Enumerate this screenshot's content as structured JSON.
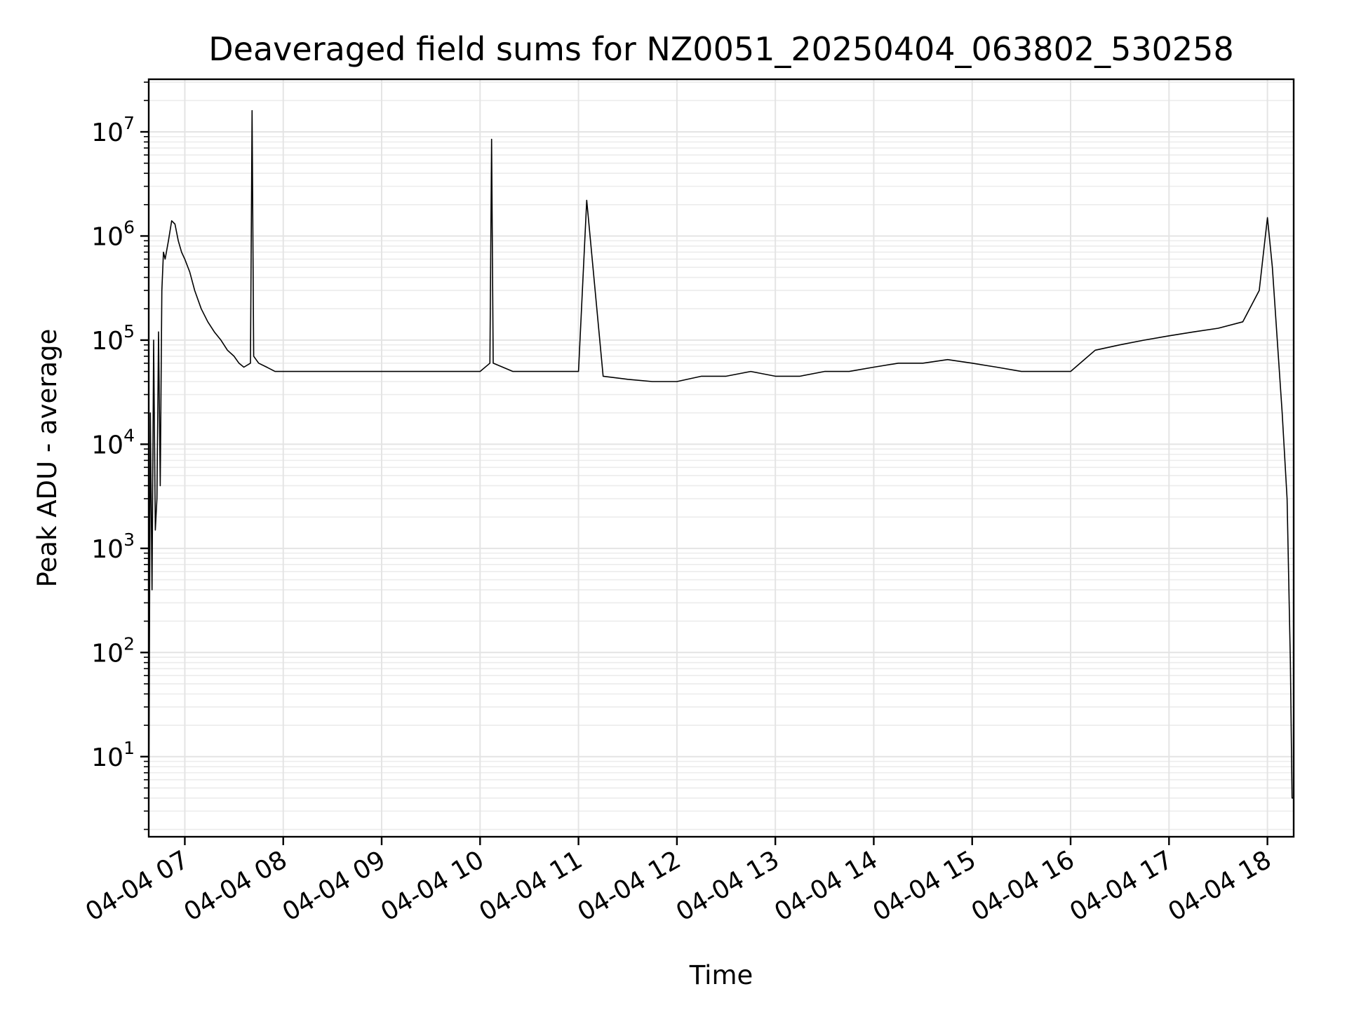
{
  "chart_data": {
    "type": "line",
    "title": "Deaveraged field sums for NZ0051_20250404_063802_530258",
    "xlabel": "Time",
    "ylabel": "Peak ADU - average",
    "yscale": "log",
    "ylim": [
      1.7,
      32000000.0
    ],
    "xlim": [
      "2025-04-04T06:38",
      "2025-04-04T18:16"
    ],
    "grid": true,
    "grid_minor": true,
    "x_ticks": [
      {
        "label": "04-04 07",
        "value": "2025-04-04T07:00"
      },
      {
        "label": "04-04 08",
        "value": "2025-04-04T08:00"
      },
      {
        "label": "04-04 09",
        "value": "2025-04-04T09:00"
      },
      {
        "label": "04-04 10",
        "value": "2025-04-04T10:00"
      },
      {
        "label": "04-04 11",
        "value": "2025-04-04T11:00"
      },
      {
        "label": "04-04 12",
        "value": "2025-04-04T12:00"
      },
      {
        "label": "04-04 13",
        "value": "2025-04-04T13:00"
      },
      {
        "label": "04-04 14",
        "value": "2025-04-04T14:00"
      },
      {
        "label": "04-04 15",
        "value": "2025-04-04T15:00"
      },
      {
        "label": "04-04 16",
        "value": "2025-04-04T16:00"
      },
      {
        "label": "04-04 17",
        "value": "2025-04-04T17:00"
      },
      {
        "label": "04-04 18",
        "value": "2025-04-04T18:00"
      }
    ],
    "y_ticks": [
      {
        "base": "10",
        "exp": "1",
        "value": 10
      },
      {
        "base": "10",
        "exp": "2",
        "value": 100
      },
      {
        "base": "10",
        "exp": "3",
        "value": 1000
      },
      {
        "base": "10",
        "exp": "4",
        "value": 10000
      },
      {
        "base": "10",
        "exp": "5",
        "value": 100000
      },
      {
        "base": "10",
        "exp": "6",
        "value": 1000000
      },
      {
        "base": "10",
        "exp": "7",
        "value": 10000000
      }
    ],
    "series": [
      {
        "color": "#000000",
        "x": [
          "2025-04-04T06:38",
          "2025-04-04T06:39",
          "2025-04-04T06:40",
          "2025-04-04T06:41",
          "2025-04-04T06:42",
          "2025-04-04T06:43",
          "2025-04-04T06:44",
          "2025-04-04T06:45",
          "2025-04-04T06:46",
          "2025-04-04T06:47",
          "2025-04-04T06:48",
          "2025-04-04T06:50",
          "2025-04-04T06:52",
          "2025-04-04T06:54",
          "2025-04-04T06:56",
          "2025-04-04T06:58",
          "2025-04-04T07:00",
          "2025-04-04T07:03",
          "2025-04-04T07:06",
          "2025-04-04T07:10",
          "2025-04-04T07:14",
          "2025-04-04T07:18",
          "2025-04-04T07:22",
          "2025-04-04T07:26",
          "2025-04-04T07:30",
          "2025-04-04T07:33",
          "2025-04-04T07:36",
          "2025-04-04T07:40",
          "2025-04-04T07:41",
          "2025-04-04T07:42",
          "2025-04-04T07:45",
          "2025-04-04T07:50",
          "2025-04-04T07:55",
          "2025-04-04T08:00",
          "2025-04-04T08:10",
          "2025-04-04T08:20",
          "2025-04-04T08:30",
          "2025-04-04T08:40",
          "2025-04-04T08:50",
          "2025-04-04T09:00",
          "2025-04-04T09:10",
          "2025-04-04T09:20",
          "2025-04-04T09:30",
          "2025-04-04T09:40",
          "2025-04-04T09:50",
          "2025-04-04T10:00",
          "2025-04-04T10:06",
          "2025-04-04T10:07",
          "2025-04-04T10:08",
          "2025-04-04T10:20",
          "2025-04-04T10:30",
          "2025-04-04T10:40",
          "2025-04-04T10:50",
          "2025-04-04T11:00",
          "2025-04-04T11:05",
          "2025-04-04T11:15",
          "2025-04-04T11:30",
          "2025-04-04T11:45",
          "2025-04-04T12:00",
          "2025-04-04T12:15",
          "2025-04-04T12:30",
          "2025-04-04T12:45",
          "2025-04-04T13:00",
          "2025-04-04T13:15",
          "2025-04-04T13:30",
          "2025-04-04T13:45",
          "2025-04-04T14:00",
          "2025-04-04T14:15",
          "2025-04-04T14:30",
          "2025-04-04T14:45",
          "2025-04-04T15:00",
          "2025-04-04T15:15",
          "2025-04-04T15:30",
          "2025-04-04T15:45",
          "2025-04-04T16:00",
          "2025-04-04T16:15",
          "2025-04-04T16:30",
          "2025-04-04T16:45",
          "2025-04-04T17:00",
          "2025-04-04T17:15",
          "2025-04-04T17:30",
          "2025-04-04T17:45",
          "2025-04-04T17:55",
          "2025-04-04T18:00",
          "2025-04-04T18:03",
          "2025-04-04T18:06",
          "2025-04-04T18:09",
          "2025-04-04T18:12",
          "2025-04-04T18:14",
          "2025-04-04T18:15",
          "2025-04-04T18:16"
        ],
        "y": [
          2,
          20000,
          400,
          100000,
          1500,
          3000,
          120000,
          4000,
          300000,
          700000,
          600000,
          900000,
          1400000,
          1300000,
          900000,
          700000,
          600000,
          450000,
          300000,
          200000,
          150000,
          120000,
          100000,
          80000,
          70000,
          60000,
          55000,
          60000,
          16000000,
          70000,
          60000,
          55000,
          50000,
          50000,
          50000,
          50000,
          50000,
          50000,
          50000,
          50000,
          50000,
          50000,
          50000,
          50000,
          50000,
          50000,
          60000,
          8500000,
          60000,
          50000,
          50000,
          50000,
          50000,
          50000,
          2200000,
          45000,
          42000,
          40000,
          40000,
          45000,
          45000,
          50000,
          45000,
          45000,
          50000,
          50000,
          55000,
          60000,
          60000,
          65000,
          60000,
          55000,
          50000,
          50000,
          50000,
          80000,
          90000,
          100000,
          110000,
          120000,
          130000,
          150000,
          300000,
          1500000,
          500000,
          100000,
          20000,
          3000,
          80,
          4,
          4
        ]
      }
    ]
  }
}
